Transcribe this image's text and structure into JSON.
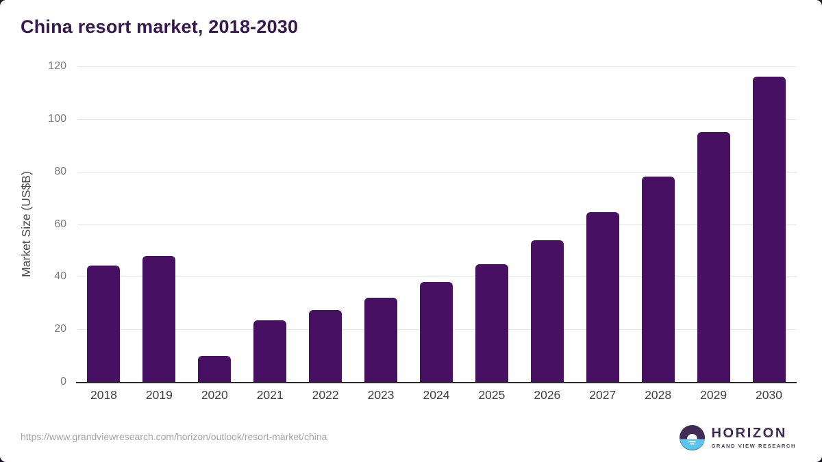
{
  "header": {
    "title": "China resort market, 2018-2030"
  },
  "chart_data": {
    "type": "bar",
    "title": "China resort market, 2018-2030",
    "categories": [
      "2018",
      "2019",
      "2020",
      "2021",
      "2022",
      "2023",
      "2024",
      "2025",
      "2026",
      "2027",
      "2028",
      "2029",
      "2030"
    ],
    "values": [
      44.2,
      47.8,
      9.8,
      23.4,
      27.3,
      32.1,
      38.0,
      44.9,
      53.9,
      64.5,
      78.1,
      94.9,
      116.2
    ],
    "xlabel": "",
    "ylabel": "Market Size (US$B)",
    "ylim": [
      0,
      120
    ],
    "yticks": [
      0,
      20,
      40,
      60,
      80,
      100,
      120
    ],
    "grid": "horizontal",
    "legend": "none",
    "bar_color": "#481063"
  },
  "footer": {
    "url": "https://www.grandviewresearch.com/horizon/outlook/resort-market/china",
    "logo": {
      "name": "HORIZON",
      "subtitle": "GRAND VIEW RESEARCH"
    }
  },
  "colors": {
    "bar": "#481063",
    "title_text": "#37184d",
    "axis_line": "#2b2b2b",
    "gridline": "#e4e4e4",
    "y_tick_text": "#7a7a7a",
    "x_tick_text": "#404040",
    "url_text": "#a5a5a5",
    "logo_purple": "#3d2a55",
    "logo_blue": "#59c5ec",
    "page_background": "#ffffff"
  }
}
